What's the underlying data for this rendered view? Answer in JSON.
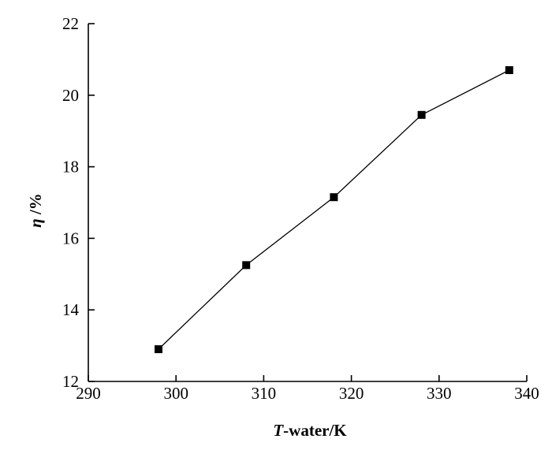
{
  "chart_data": {
    "type": "line",
    "title": "",
    "xlabel": {
      "symbol": "T",
      "rest": "-water/K"
    },
    "ylabel": {
      "symbol": "η",
      "rest": " /%"
    },
    "xlim": [
      290,
      340
    ],
    "ylim": [
      12,
      22
    ],
    "xticks": [
      290,
      300,
      310,
      320,
      330,
      340
    ],
    "yticks": [
      12,
      14,
      16,
      18,
      20,
      22
    ],
    "grid": false,
    "legend": "none",
    "marker": "square",
    "line_color": "#000000",
    "marker_color": "#000000",
    "series": [
      {
        "x": [
          298,
          308,
          318,
          328,
          338
        ],
        "y": [
          12.9,
          15.25,
          17.15,
          19.45,
          20.7
        ]
      }
    ]
  }
}
